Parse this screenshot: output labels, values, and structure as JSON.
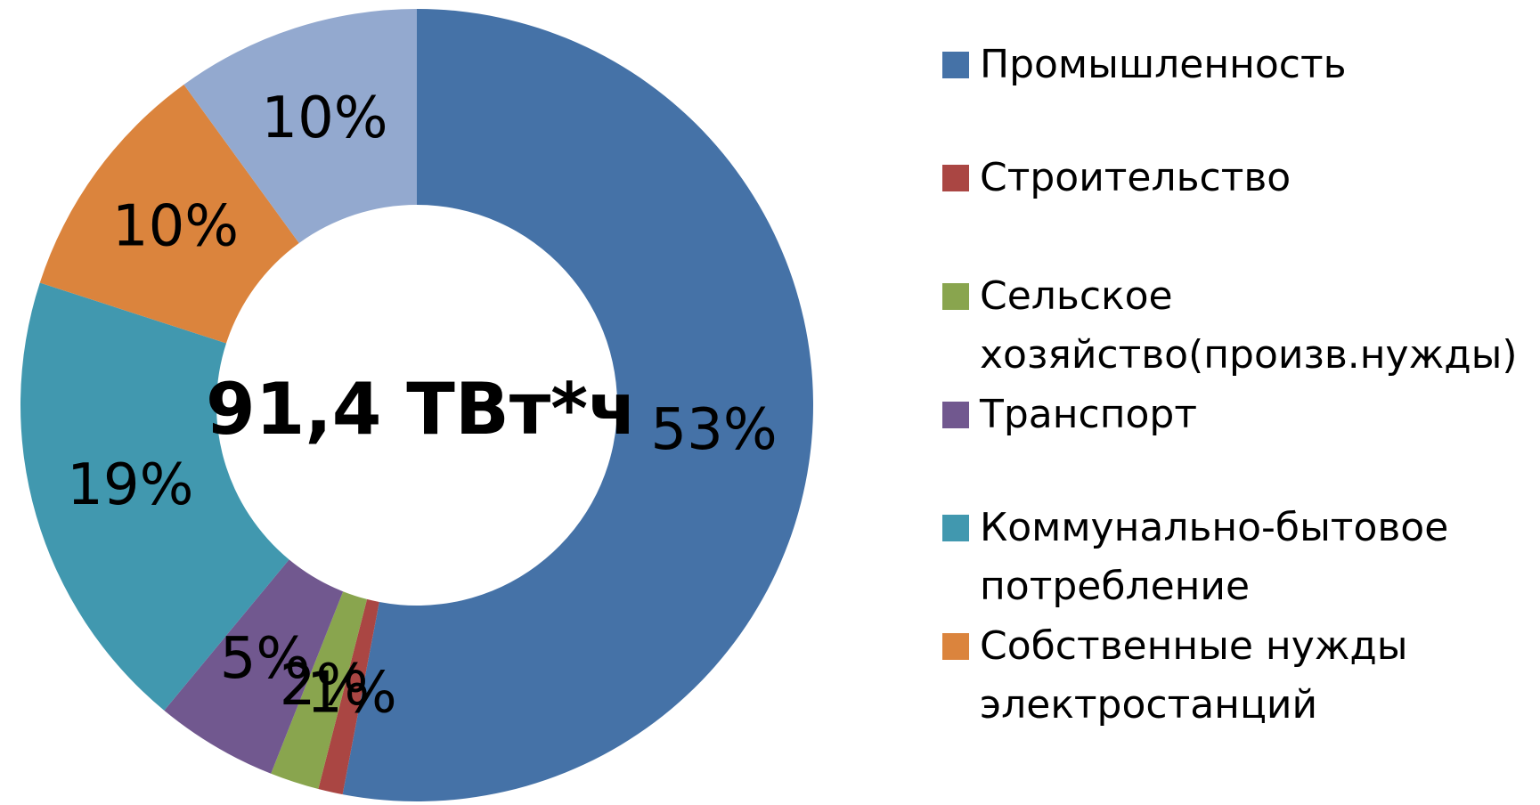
{
  "chart_data": {
    "type": "donut",
    "center_label": "91,4 ТВт*ч",
    "categories": [
      "Промышленность",
      "Строительство",
      "Сельское хозяйство(произв.нужды)",
      "Транспорт",
      "Коммунально-бытовое потребление",
      "Собственные нужды электростанций",
      null
    ],
    "values": [
      53,
      1,
      2,
      5,
      19,
      10,
      10
    ],
    "value_labels": [
      "53%",
      "1%",
      "2%",
      "5%",
      "19%",
      "10%",
      "10%"
    ],
    "colors": [
      "#4572a7",
      "#aa4643",
      "#89a54e",
      "#71588f",
      "#4198af",
      "#db843d",
      "#93a9cf"
    ],
    "legend": "right"
  }
}
